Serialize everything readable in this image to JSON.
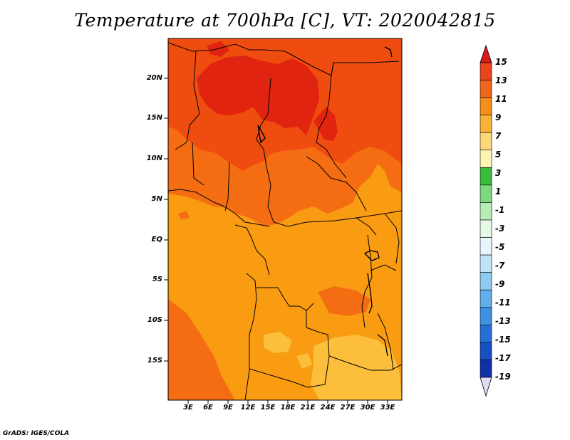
{
  "title": "Temperature at 700hPa [C], VT: 2020042815",
  "credit": "GrADS: IGES/COLA",
  "map": {
    "region": "Central Africa",
    "lat_labels": [
      "20N",
      "15N",
      "10N",
      "5N",
      "EQ",
      "5S",
      "10S",
      "15S"
    ],
    "lon_labels": [
      "3E",
      "6E",
      "9E",
      "12E",
      "15E",
      "18E",
      "21E",
      "24E",
      "27E",
      "30E",
      "33E"
    ]
  },
  "colorbar": {
    "labels": [
      "15",
      "13",
      "11",
      "9",
      "7",
      "5",
      "3",
      "1",
      "-1",
      "-3",
      "-5",
      "-7",
      "-9",
      "-11",
      "-13",
      "-15",
      "-17",
      "-19"
    ],
    "top_arrow_color": "#d91a1a",
    "bottom_arrow_color": "#e0dcf5",
    "colors": [
      "#d7261d",
      "#e8461a",
      "#f0661b",
      "#f7901b",
      "#f8b238",
      "#fdd87a",
      "#fef4b2",
      "#3cba3c",
      "#7ed87e",
      "#b6ecb6",
      "#e6f9e6",
      "#e8f6fb",
      "#bfe4f6",
      "#8fcaf0",
      "#62aeea",
      "#3e90e2",
      "#2470d6",
      "#1650c2",
      "#0e32a6",
      "#0a1b7e"
    ]
  },
  "field_colors": {
    "t15": "#e0240f",
    "t13": "#ef4d10",
    "t11": "#f46d12",
    "t9": "#f99c12",
    "t7": "#fbbf3c"
  }
}
